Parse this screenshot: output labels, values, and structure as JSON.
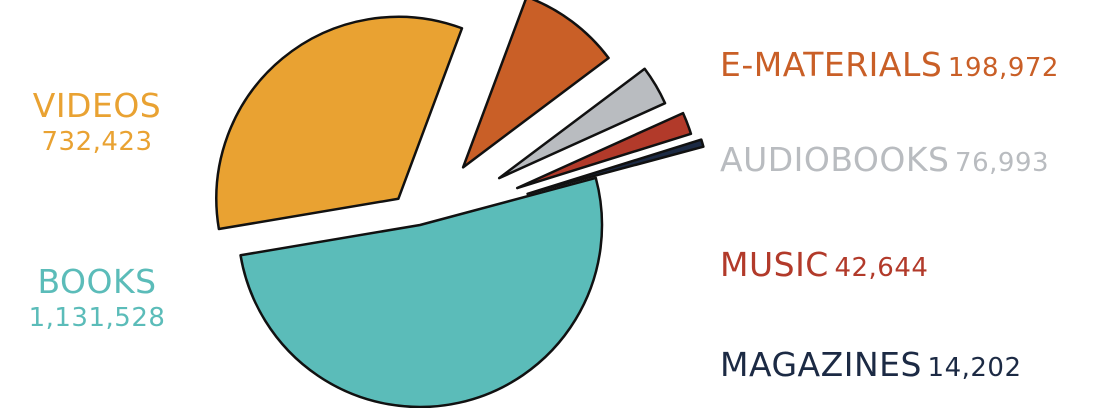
{
  "chart_data": {
    "type": "pie",
    "title": "",
    "series": [
      {
        "name": "BOOKS",
        "value": 1131528,
        "value_label": "1,131,528",
        "color": "#5bbcb9"
      },
      {
        "name": "VIDEOS",
        "value": 732423,
        "value_label": "732,423",
        "color": "#e9a232"
      },
      {
        "name": "E-MATERIALS",
        "value": 198972,
        "value_label": "198,972",
        "color": "#c95f27"
      },
      {
        "name": "AUDIOBOOKS",
        "value": 76993,
        "value_label": "76,993",
        "color": "#b9bcc0"
      },
      {
        "name": "MUSIC",
        "value": 42644,
        "value_label": "42,644",
        "color": "#b23a2a"
      },
      {
        "name": "MAGAZINES",
        "value": 14202,
        "value_label": "14,202",
        "color": "#1c2a44"
      }
    ],
    "exploded": true,
    "legend": "labels-around"
  }
}
